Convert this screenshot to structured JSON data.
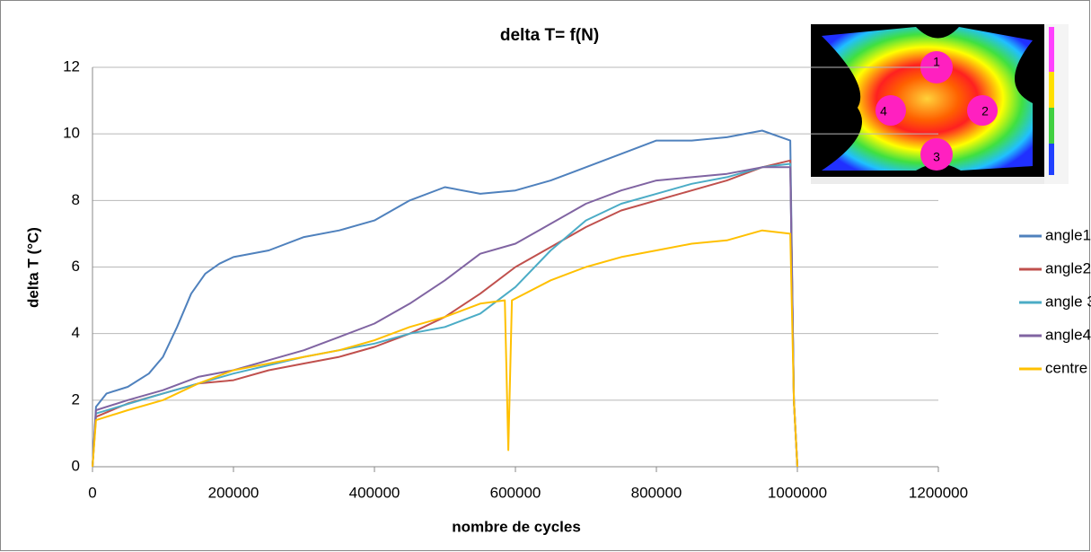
{
  "chart_data": {
    "type": "line",
    "title": "delta T= f(N)",
    "x_label": "nombre de cycles",
    "y_label": "delta T (°C)",
    "xlim": [
      0,
      1200000
    ],
    "xticks": [
      0,
      200000,
      400000,
      600000,
      800000,
      1000000,
      1200000
    ],
    "ylim": [
      0,
      12
    ],
    "yticks": [
      0,
      2,
      4,
      6,
      8,
      10,
      12
    ],
    "grid": true,
    "legend": "right",
    "annotations": [
      "1",
      "2",
      "3",
      "4"
    ],
    "series": [
      {
        "name": "angle1",
        "color": "#4f81bd",
        "x": [
          0,
          5000,
          20000,
          50000,
          80000,
          100000,
          120000,
          140000,
          160000,
          180000,
          200000,
          250000,
          300000,
          350000,
          400000,
          450000,
          500000,
          550000,
          600000,
          650000,
          700000,
          750000,
          800000,
          850000,
          900000,
          950000,
          990000,
          995000,
          1000000
        ],
        "values": [
          0,
          1.8,
          2.2,
          2.4,
          2.8,
          3.3,
          4.2,
          5.2,
          5.8,
          6.1,
          6.3,
          6.5,
          6.9,
          7.1,
          7.4,
          8.0,
          8.4,
          8.2,
          8.3,
          8.6,
          9.0,
          9.4,
          9.8,
          9.8,
          9.9,
          10.1,
          9.8,
          2,
          0
        ]
      },
      {
        "name": "angle2",
        "color": "#c0504d",
        "x": [
          0,
          5000,
          50000,
          100000,
          150000,
          200000,
          250000,
          300000,
          350000,
          400000,
          450000,
          500000,
          550000,
          600000,
          650000,
          700000,
          750000,
          800000,
          850000,
          900000,
          950000,
          990000,
          995000,
          1000000
        ],
        "values": [
          0,
          1.5,
          1.9,
          2.2,
          2.5,
          2.6,
          2.9,
          3.1,
          3.3,
          3.6,
          4.0,
          4.5,
          5.2,
          6.0,
          6.6,
          7.2,
          7.7,
          8.0,
          8.3,
          8.6,
          9.0,
          9.2,
          2,
          0
        ]
      },
      {
        "name": "angle 3",
        "color": "#4bacc6",
        "x": [
          0,
          5000,
          100000,
          200000,
          300000,
          400000,
          450000,
          500000,
          550000,
          600000,
          650000,
          700000,
          750000,
          800000,
          850000,
          900000,
          950000,
          990000,
          995000,
          1000000
        ],
        "values": [
          0,
          1.6,
          2.2,
          2.8,
          3.3,
          3.7,
          4.0,
          4.2,
          4.6,
          5.4,
          6.5,
          7.4,
          7.9,
          8.2,
          8.5,
          8.7,
          9.0,
          9.1,
          2,
          0
        ]
      },
      {
        "name": "angle4",
        "color": "#8064a2",
        "x": [
          0,
          5000,
          50000,
          100000,
          150000,
          200000,
          250000,
          300000,
          350000,
          400000,
          450000,
          500000,
          550000,
          600000,
          650000,
          700000,
          750000,
          800000,
          850000,
          900000,
          950000,
          990000,
          995000,
          1000000
        ],
        "values": [
          0,
          1.7,
          2.0,
          2.3,
          2.7,
          2.9,
          3.2,
          3.5,
          3.9,
          4.3,
          4.9,
          5.6,
          6.4,
          6.7,
          7.3,
          7.9,
          8.3,
          8.6,
          8.7,
          8.8,
          9.0,
          9.0,
          2,
          0
        ]
      },
      {
        "name": "centre",
        "color": "#ffc000",
        "x": [
          0,
          5000,
          50000,
          100000,
          150000,
          200000,
          250000,
          300000,
          350000,
          400000,
          450000,
          500000,
          550000,
          585000,
          590000,
          595000,
          650000,
          700000,
          750000,
          800000,
          850000,
          900000,
          950000,
          990000,
          995000,
          1000000
        ],
        "values": [
          0,
          1.4,
          1.7,
          2.0,
          2.5,
          2.9,
          3.1,
          3.3,
          3.5,
          3.8,
          4.2,
          4.5,
          4.9,
          5.0,
          0.5,
          5.0,
          5.6,
          6.0,
          6.3,
          6.5,
          6.7,
          6.8,
          7.1,
          7.0,
          2,
          0
        ]
      }
    ]
  }
}
